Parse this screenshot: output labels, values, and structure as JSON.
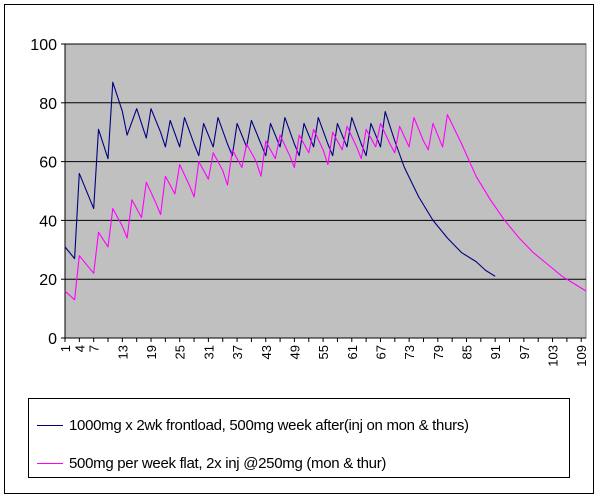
{
  "chart_data": {
    "type": "line",
    "title": "",
    "xlabel": "",
    "ylabel": "",
    "ylim": [
      0,
      100
    ],
    "yticks": [
      0,
      20,
      40,
      60,
      80,
      100
    ],
    "x_range": [
      1,
      110
    ],
    "x_tick_labels": [
      "1",
      "4",
      "7",
      "13",
      "19",
      "25",
      "31",
      "37",
      "43",
      "49",
      "55",
      "61",
      "67",
      "73",
      "79",
      "85",
      "91",
      "97",
      "103",
      "109"
    ],
    "plot_background": "#c0c0c0",
    "gridlines": "horizontal",
    "legend_position": "bottom",
    "series": [
      {
        "name": "1000mg x 2wk frontload, 500mg week after(inj on mon & thurs)",
        "color": "#000080",
        "points": [
          [
            1,
            31
          ],
          [
            3,
            27
          ],
          [
            4,
            56
          ],
          [
            7,
            44
          ],
          [
            8,
            71
          ],
          [
            10,
            61
          ],
          [
            11,
            87
          ],
          [
            13,
            77
          ],
          [
            14,
            69
          ],
          [
            16,
            78
          ],
          [
            18,
            68
          ],
          [
            19,
            78
          ],
          [
            21,
            70
          ],
          [
            22,
            65
          ],
          [
            23,
            74
          ],
          [
            25,
            65
          ],
          [
            26,
            75
          ],
          [
            28,
            66
          ],
          [
            29,
            62
          ],
          [
            30,
            73
          ],
          [
            32,
            65
          ],
          [
            33,
            75
          ],
          [
            35,
            66
          ],
          [
            36,
            62
          ],
          [
            37,
            73
          ],
          [
            39,
            65
          ],
          [
            40,
            74
          ],
          [
            42,
            66
          ],
          [
            43,
            62
          ],
          [
            44,
            73
          ],
          [
            46,
            65
          ],
          [
            47,
            75
          ],
          [
            49,
            66
          ],
          [
            50,
            62
          ],
          [
            51,
            73
          ],
          [
            53,
            65
          ],
          [
            54,
            75
          ],
          [
            56,
            66
          ],
          [
            57,
            62
          ],
          [
            58,
            73
          ],
          [
            60,
            65
          ],
          [
            61,
            75
          ],
          [
            63,
            66
          ],
          [
            64,
            62
          ],
          [
            65,
            73
          ],
          [
            67,
            65
          ],
          [
            68,
            77
          ],
          [
            70,
            67
          ],
          [
            72,
            58
          ],
          [
            75,
            48
          ],
          [
            78,
            40
          ],
          [
            81,
            34
          ],
          [
            84,
            29
          ],
          [
            87,
            26
          ],
          [
            89,
            23
          ],
          [
            91,
            21
          ]
        ]
      },
      {
        "name": "500mg per week flat, 2x inj @250mg (mon & thur)",
        "color": "#ff00ff",
        "points": [
          [
            1,
            16
          ],
          [
            3,
            13
          ],
          [
            4,
            28
          ],
          [
            7,
            22
          ],
          [
            8,
            36
          ],
          [
            10,
            31
          ],
          [
            11,
            44
          ],
          [
            13,
            38
          ],
          [
            14,
            34
          ],
          [
            15,
            47
          ],
          [
            17,
            41
          ],
          [
            18,
            53
          ],
          [
            20,
            46
          ],
          [
            21,
            42
          ],
          [
            22,
            55
          ],
          [
            24,
            49
          ],
          [
            25,
            59
          ],
          [
            27,
            52
          ],
          [
            28,
            48
          ],
          [
            29,
            60
          ],
          [
            31,
            54
          ],
          [
            32,
            63
          ],
          [
            34,
            57
          ],
          [
            35,
            52
          ],
          [
            36,
            64
          ],
          [
            38,
            58
          ],
          [
            39,
            66
          ],
          [
            41,
            60
          ],
          [
            42,
            55
          ],
          [
            43,
            67
          ],
          [
            45,
            61
          ],
          [
            46,
            69
          ],
          [
            48,
            62
          ],
          [
            49,
            58
          ],
          [
            50,
            69
          ],
          [
            52,
            63
          ],
          [
            53,
            71
          ],
          [
            55,
            64
          ],
          [
            56,
            59
          ],
          [
            57,
            70
          ],
          [
            59,
            64
          ],
          [
            60,
            72
          ],
          [
            62,
            65
          ],
          [
            63,
            61
          ],
          [
            64,
            71
          ],
          [
            66,
            65
          ],
          [
            67,
            73
          ],
          [
            69,
            66
          ],
          [
            70,
            63
          ],
          [
            71,
            72
          ],
          [
            73,
            65
          ],
          [
            74,
            75
          ],
          [
            76,
            67
          ],
          [
            77,
            64
          ],
          [
            78,
            73
          ],
          [
            80,
            65
          ],
          [
            81,
            76
          ],
          [
            84,
            66
          ],
          [
            87,
            55
          ],
          [
            90,
            47
          ],
          [
            93,
            40
          ],
          [
            96,
            34
          ],
          [
            99,
            29
          ],
          [
            102,
            25
          ],
          [
            105,
            21
          ],
          [
            108,
            18
          ],
          [
            110,
            16
          ]
        ]
      }
    ]
  }
}
